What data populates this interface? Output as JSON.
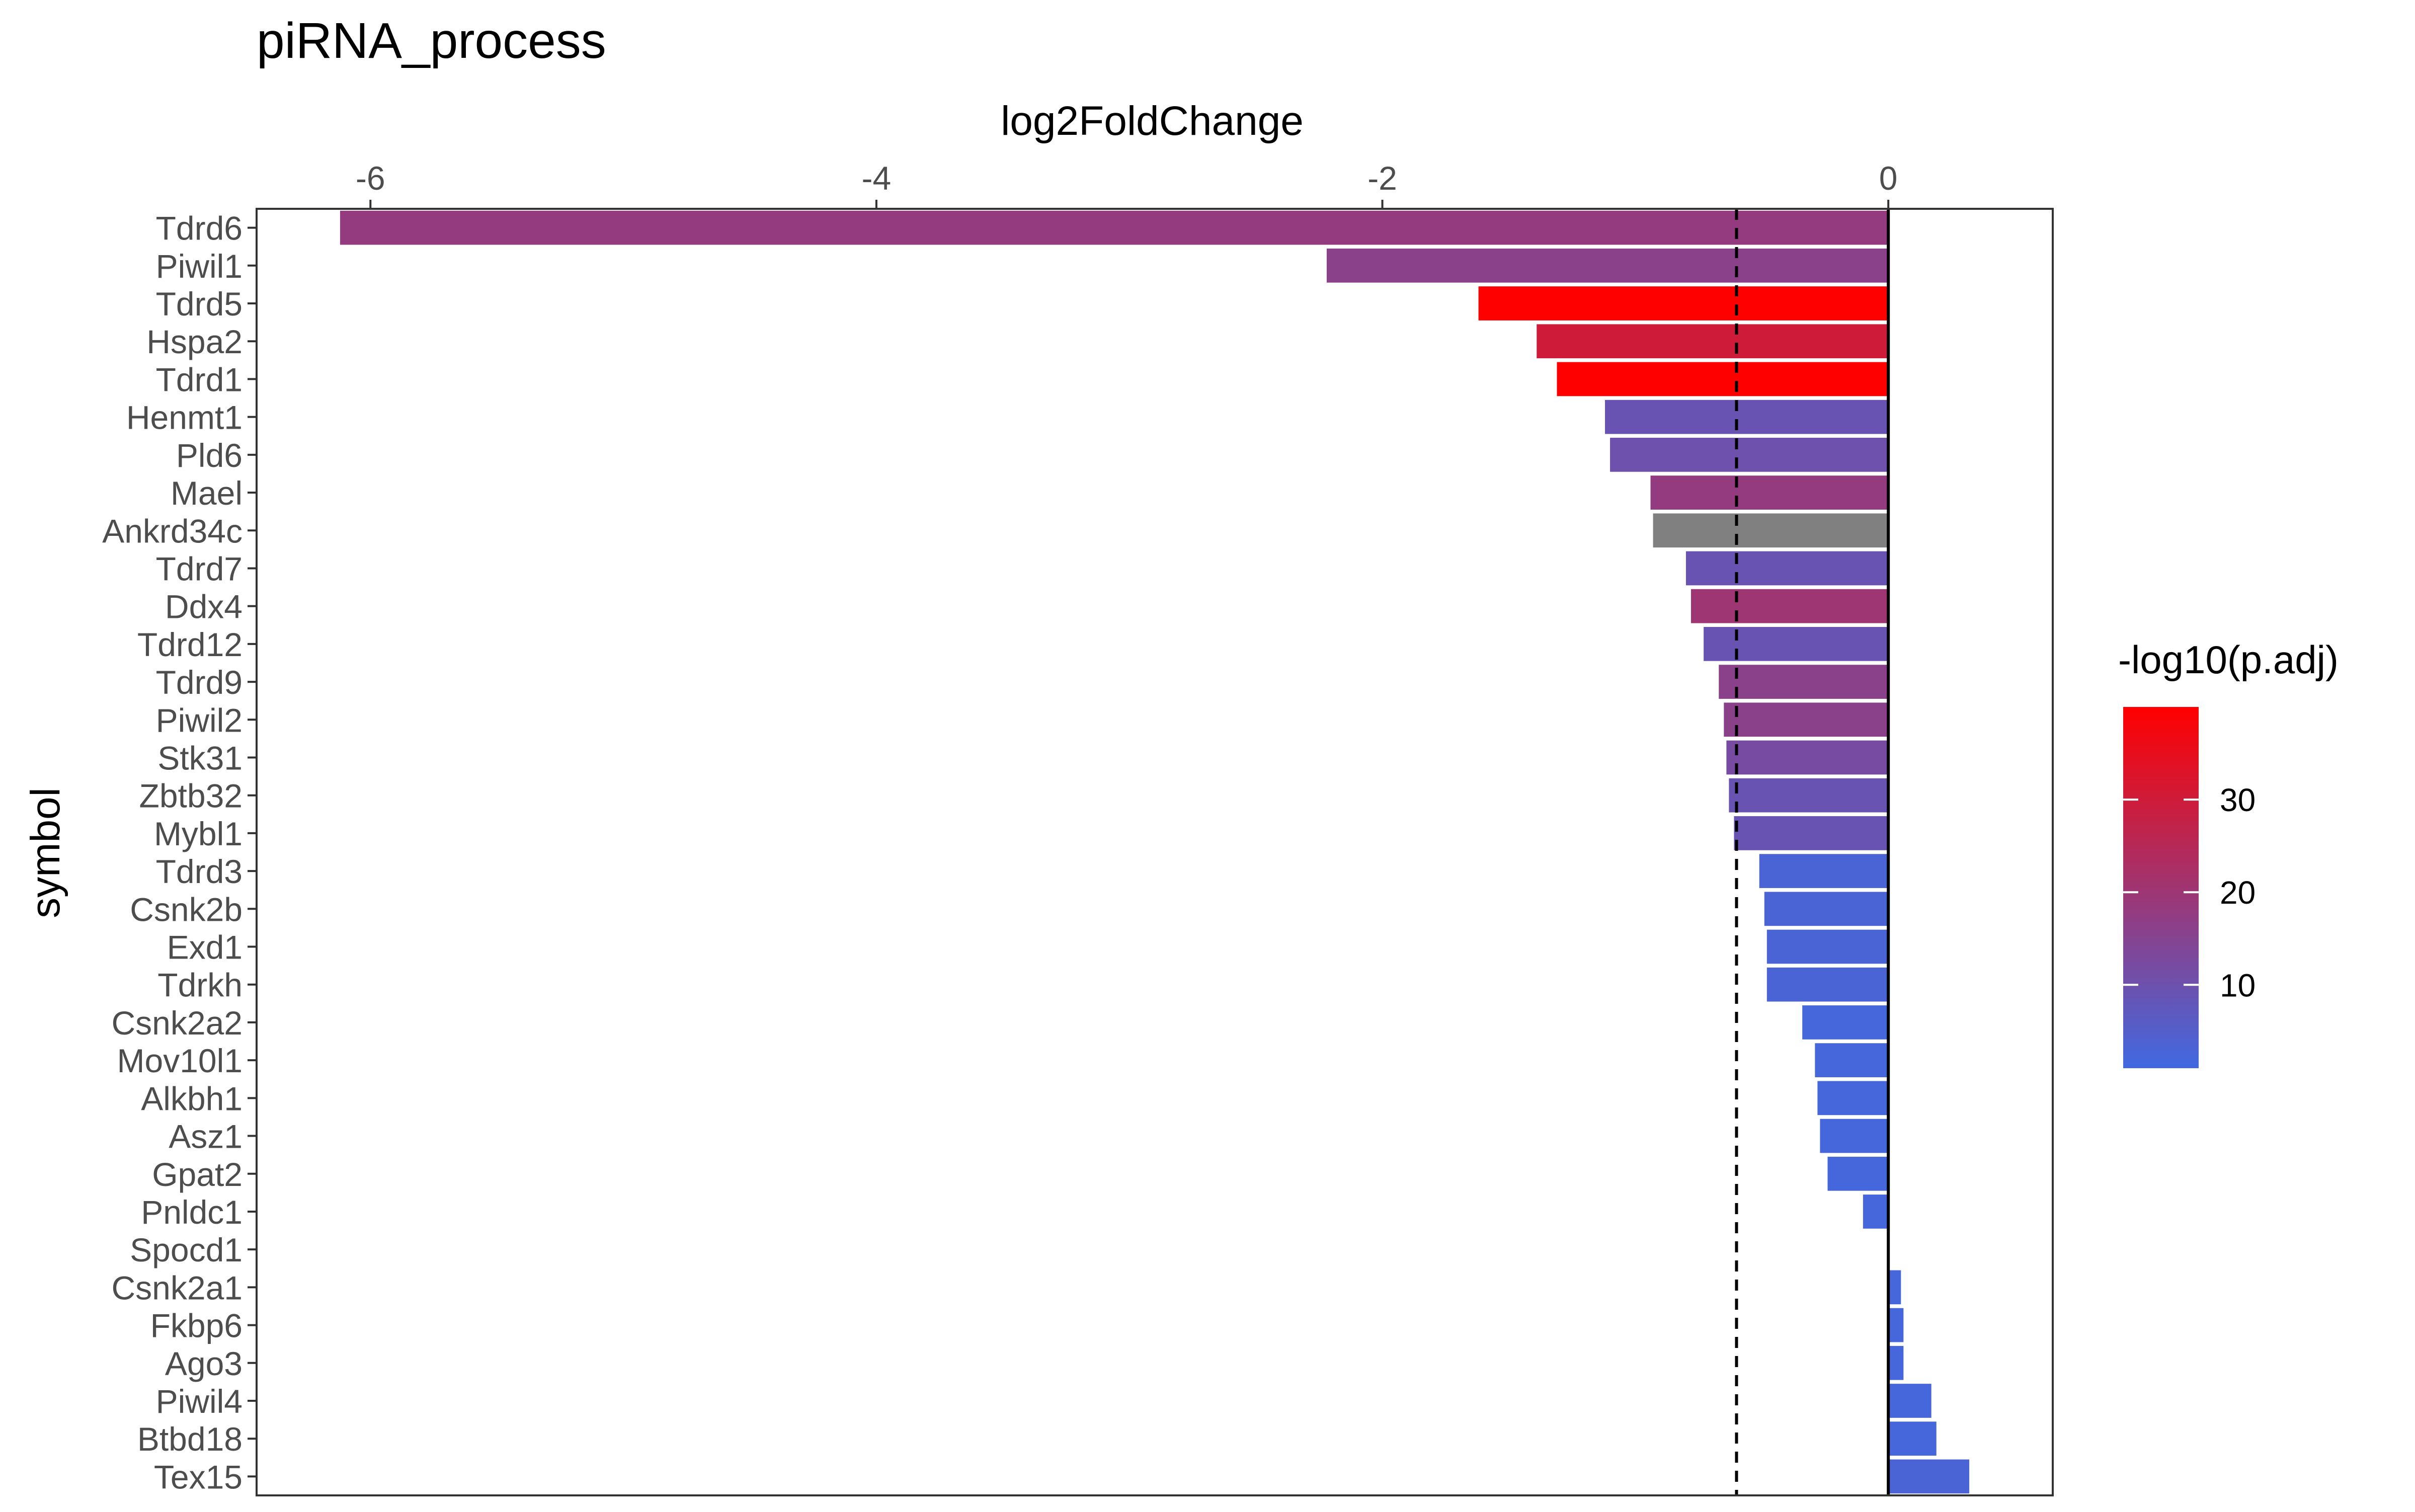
{
  "chart_data": {
    "type": "bar",
    "orientation": "horizontal",
    "title": "piRNA_process",
    "xlabel": "log2FoldChange",
    "ylabel": "symbol",
    "x_axis_position": "top",
    "xlim": [
      -6.45,
      0.65
    ],
    "xticks": [
      -6,
      -4,
      -2,
      0
    ],
    "threshold_line": -0.6,
    "grid": false,
    "categories": [
      "Tdrd6",
      "Piwil1",
      "Tdrd5",
      "Hspa2",
      "Tdrd1",
      "Henmt1",
      "Pld6",
      "Mael",
      "Ankrd34c",
      "Tdrd7",
      "Ddx4",
      "Tdrd12",
      "Tdrd9",
      "Piwil2",
      "Stk31",
      "Zbtb32",
      "Mybl1",
      "Tdrd3",
      "Csnk2b",
      "Exd1",
      "Tdrkh",
      "Csnk2a2",
      "Mov10l1",
      "Alkbh1",
      "Asz1",
      "Gpat2",
      "Pnldc1",
      "Spocd1",
      "Csnk2a1",
      "Fkbp6",
      "Ago3",
      "Piwil4",
      "Btbd18",
      "Tex15"
    ],
    "values": [
      -6.12,
      -2.22,
      -1.62,
      -1.39,
      -1.31,
      -1.12,
      -1.1,
      -0.94,
      -0.93,
      -0.8,
      -0.78,
      -0.73,
      -0.67,
      -0.65,
      -0.64,
      -0.63,
      -0.61,
      -0.51,
      -0.49,
      -0.48,
      -0.48,
      -0.34,
      -0.29,
      -0.28,
      -0.27,
      -0.24,
      -0.1,
      0.0,
      0.05,
      0.06,
      0.06,
      0.17,
      0.19,
      0.32
    ],
    "color_values": [
      18,
      16,
      40,
      30,
      40,
      9,
      10,
      18,
      null,
      9,
      20,
      9,
      16,
      16,
      12,
      9,
      9,
      3,
      3,
      3,
      3,
      2,
      2,
      2,
      2,
      2,
      2,
      1,
      2,
      2,
      2,
      2,
      2,
      3
    ],
    "legend": {
      "title": "-log10(p.adj)",
      "position": "right",
      "ticks": [
        10,
        20,
        30
      ],
      "range": [
        1,
        40
      ],
      "low_color": "#4169E1",
      "high_color": "#FF0000",
      "na_color": "#808080"
    }
  }
}
